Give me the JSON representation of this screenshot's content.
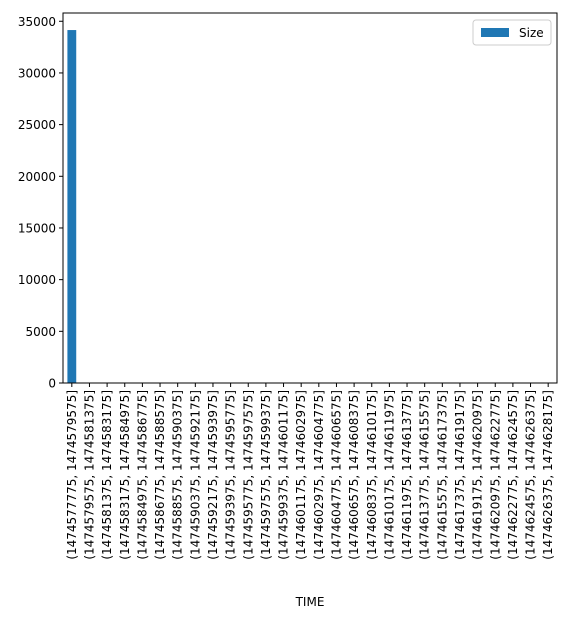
{
  "chart_data": {
    "type": "bar",
    "xlabel": "TIME",
    "ylabel": "",
    "ylim": [
      0,
      35800
    ],
    "yticks": [
      0,
      5000,
      10000,
      15000,
      20000,
      25000,
      30000,
      35000
    ],
    "grid": false,
    "legend_position": "top-right",
    "bar_color": "#1f77b4",
    "categories": [
      "(1474577775, 1474579575]",
      "(1474579575, 1474581375]",
      "(1474581375, 1474583175]",
      "(1474583175, 1474584975]",
      "(1474584975, 1474586775]",
      "(1474586775, 1474588575]",
      "(1474588575, 1474590375]",
      "(1474590375, 1474592175]",
      "(1474592175, 1474593975]",
      "(1474593975, 1474595775]",
      "(1474595775, 1474597575]",
      "(1474597575, 1474599375]",
      "(1474599375, 1474601175]",
      "(1474601175, 1474602975]",
      "(1474602975, 1474604775]",
      "(1474604775, 1474606575]",
      "(1474606575, 1474608375]",
      "(1474608375, 1474610175]",
      "(1474610175, 1474611975]",
      "(1474611975, 1474613775]",
      "(1474613775, 1474615575]",
      "(1474615575, 1474617375]",
      "(1474617375, 1474619175]",
      "(1474619175, 1474620975]",
      "(1474620975, 1474622775]",
      "(1474622775, 1474624575]",
      "(1474624575, 1474626375]",
      "(1474626375, 1474628175]"
    ],
    "series": [
      {
        "name": "Size",
        "values": [
          34150,
          0,
          0,
          0,
          0,
          0,
          0,
          0,
          0,
          0,
          0,
          0,
          0,
          0,
          0,
          0,
          0,
          0,
          0,
          0,
          0,
          0,
          0,
          0,
          0,
          0,
          0,
          0
        ]
      }
    ]
  }
}
